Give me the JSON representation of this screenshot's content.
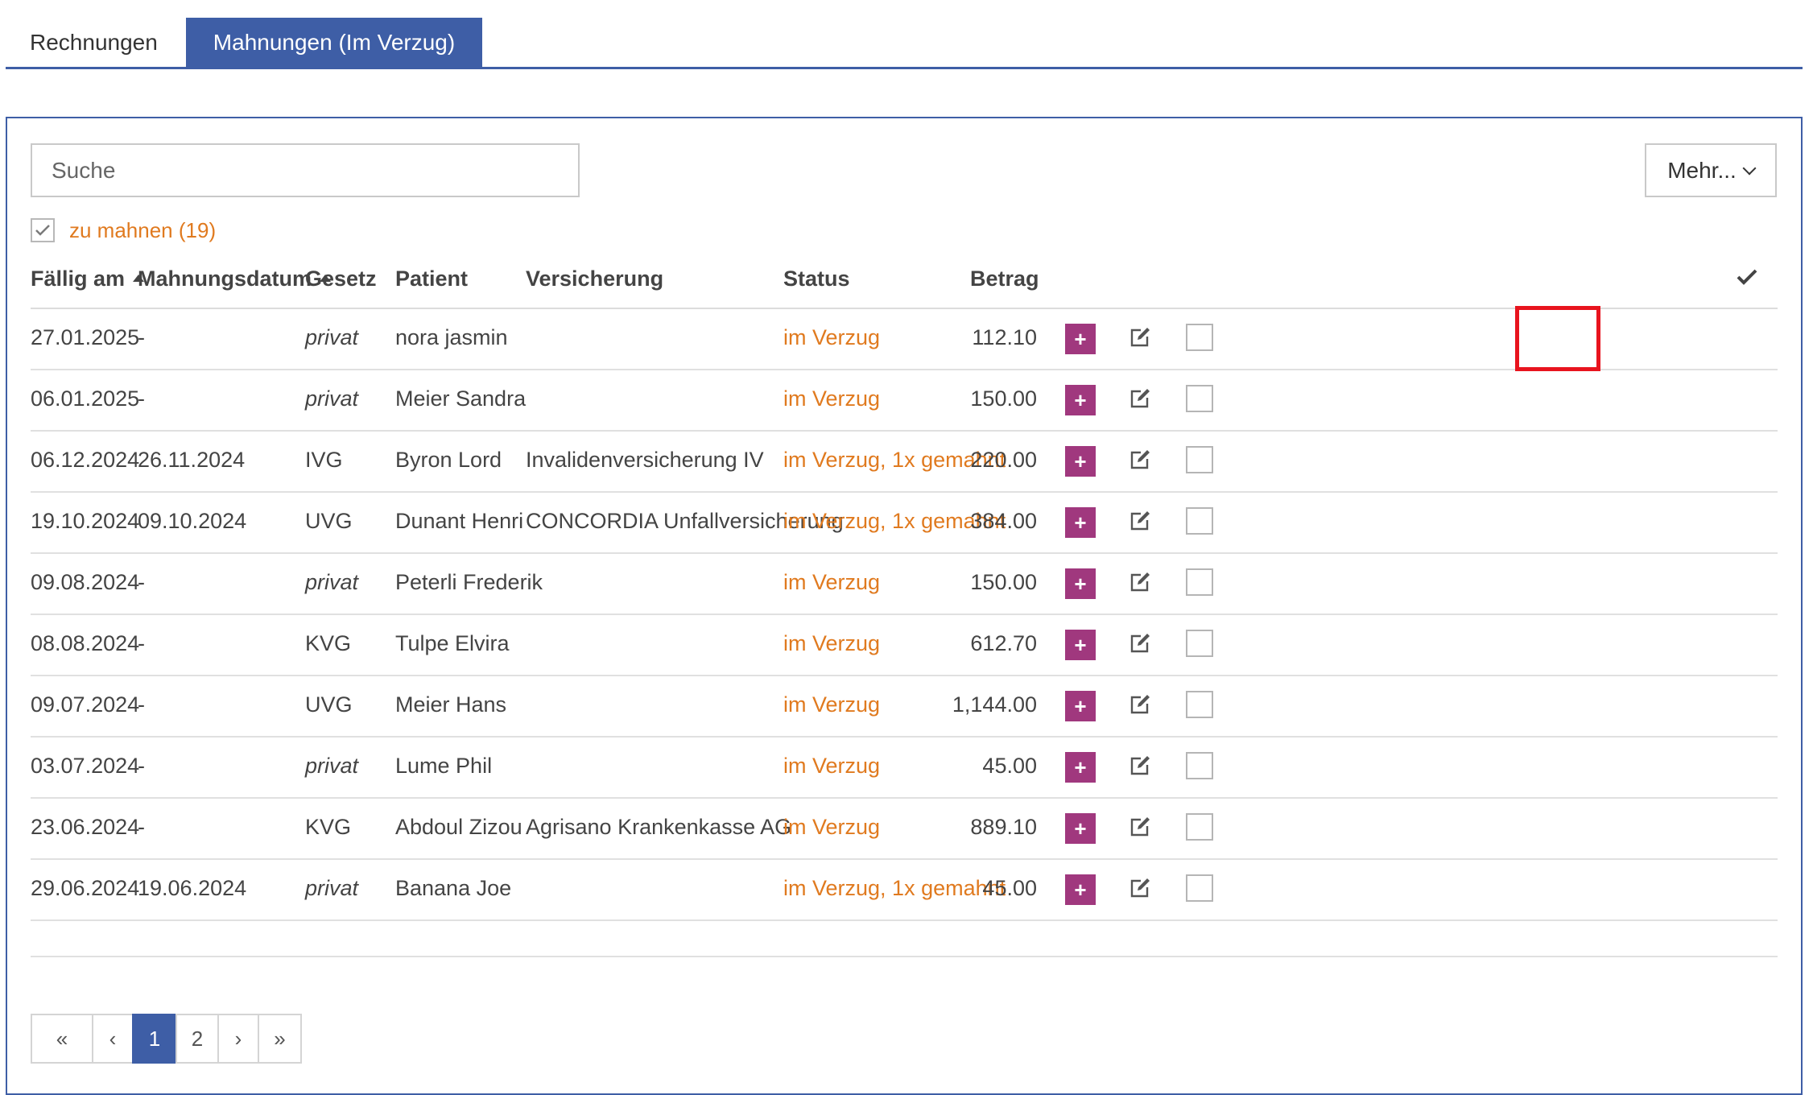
{
  "tabs": [
    {
      "label": "Rechnungen",
      "active": false
    },
    {
      "label": "Mahnungen (Im Verzug)",
      "active": true
    }
  ],
  "search": {
    "placeholder": "Suche",
    "value": ""
  },
  "more_button": {
    "label": "Mehr..."
  },
  "filter": {
    "label": "zu mahnen (19)",
    "checked": true
  },
  "table": {
    "headers": {
      "due": "Fällig am",
      "reminder_date": "Mahnungsdatum",
      "law": "Gesetz",
      "patient": "Patient",
      "insurance": "Versicherung",
      "status": "Status",
      "amount": "Betrag"
    },
    "rows": [
      {
        "due": "27.01.2025",
        "reminder_date": "-",
        "law": "privat",
        "patient": "nora jasmin",
        "insurance": "",
        "status": "im Verzug",
        "amount": "112.10"
      },
      {
        "due": "06.01.2025",
        "reminder_date": "-",
        "law": "privat",
        "patient": "Meier Sandra",
        "insurance": "",
        "status": "im Verzug",
        "amount": "150.00"
      },
      {
        "due": "06.12.2024",
        "reminder_date": "26.11.2024",
        "law": "IVG",
        "patient": "Byron Lord",
        "insurance": "Invalidenversicherung IV",
        "status": "im Verzug, 1x gemahnt",
        "amount": "220.00"
      },
      {
        "due": "19.10.2024",
        "reminder_date": "09.10.2024",
        "law": "UVG",
        "patient": "Dunant Henri",
        "insurance": "CONCORDIA Unfallversicherung",
        "status": "im Verzug, 1x gemahnt",
        "amount": "384.00"
      },
      {
        "due": "09.08.2024",
        "reminder_date": "-",
        "law": "privat",
        "patient": "Peterli Frederik",
        "insurance": "",
        "status": "im Verzug",
        "amount": "150.00"
      },
      {
        "due": "08.08.2024",
        "reminder_date": "-",
        "law": "KVG",
        "patient": "Tulpe Elvira",
        "insurance": "",
        "status": "im Verzug",
        "amount": "612.70"
      },
      {
        "due": "09.07.2024",
        "reminder_date": "-",
        "law": "UVG",
        "patient": "Meier Hans",
        "insurance": "",
        "status": "im Verzug",
        "amount": "1,144.00"
      },
      {
        "due": "03.07.2024",
        "reminder_date": "-",
        "law": "privat",
        "patient": "Lume Phil",
        "insurance": "",
        "status": "im Verzug",
        "amount": "45.00"
      },
      {
        "due": "23.06.2024",
        "reminder_date": "-",
        "law": "KVG",
        "patient": "Abdoul Zizou",
        "insurance": "Agrisano Krankenkasse AG",
        "status": "im Verzug",
        "amount": "889.10"
      },
      {
        "due": "29.06.2024",
        "reminder_date": "19.06.2024",
        "law": "privat",
        "patient": "Banana Joe",
        "insurance": "",
        "status": "im Verzug, 1x gemahnt",
        "amount": "45.00"
      }
    ]
  },
  "pagination": {
    "items": [
      {
        "label": "«",
        "active": false
      },
      {
        "label": "‹",
        "active": false
      },
      {
        "label": "1",
        "active": true
      },
      {
        "label": "2",
        "active": false
      },
      {
        "label": "›",
        "active": false
      },
      {
        "label": "»",
        "active": false
      }
    ]
  },
  "colors": {
    "accent": "#3e5ea6",
    "status": "#e07a1f",
    "plus": "#a0387e",
    "highlight": "#e8141e"
  },
  "icons": {
    "plus": "+",
    "edit": "edit-icon",
    "check": "check-icon",
    "sort": "sort-up-icon"
  }
}
